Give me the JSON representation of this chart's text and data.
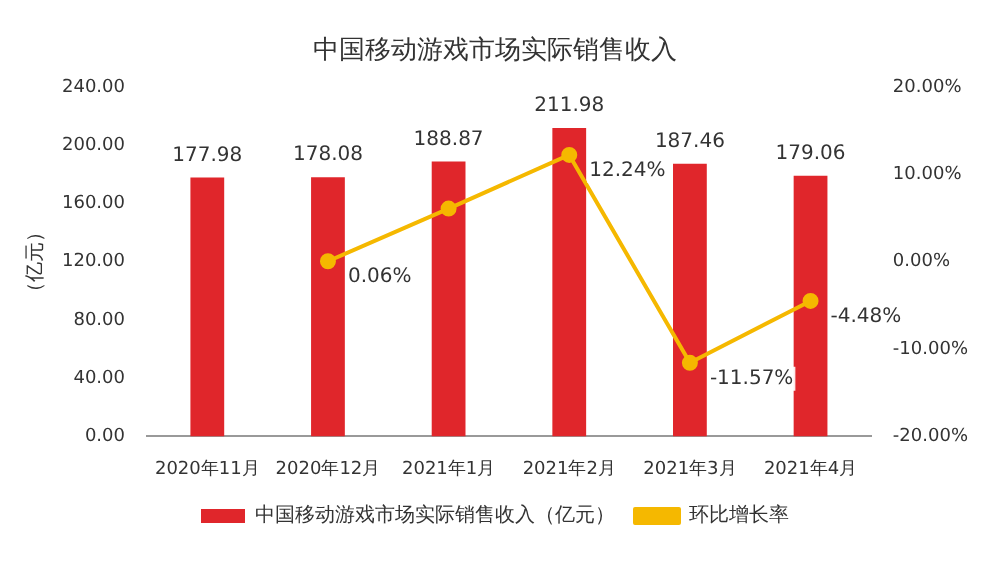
{
  "chart_data": {
    "type": "bar",
    "title": "中国移动游戏市场实际销售收入",
    "ylabel": "（亿元）",
    "categories": [
      "2020年11月",
      "2020年12月",
      "2021年1月",
      "2021年2月",
      "2021年3月",
      "2021年4月"
    ],
    "series": [
      {
        "name": "中国移动游戏市场实际销售收入（亿元）",
        "color": "#e0262b",
        "values": [
          177.98,
          178.08,
          188.87,
          211.98,
          187.46,
          179.06
        ],
        "value_labels": [
          "177.98",
          "178.08",
          "188.87",
          "211.98",
          "187.46",
          "179.06"
        ]
      },
      {
        "name": "环比增长率",
        "type": "line",
        "axis": "y2",
        "color": "#f5b800",
        "marker": "circle",
        "values": [
          null,
          0.06,
          6.1,
          12.24,
          -11.57,
          -4.48
        ],
        "value_labels": [
          null,
          "0.06%",
          null,
          "12.24%",
          "-11.57%",
          "-4.48%"
        ]
      }
    ],
    "ylim": [
      0,
      240
    ],
    "yticks": [
      {
        "value": 0,
        "label": "0.00"
      },
      {
        "value": 40,
        "label": "40.00"
      },
      {
        "value": 80,
        "label": "80.00"
      },
      {
        "value": 120,
        "label": "120.00"
      },
      {
        "value": 160,
        "label": "160.00"
      },
      {
        "value": 200,
        "label": "200.00"
      },
      {
        "value": 240,
        "label": "240.00"
      }
    ],
    "y2lim": [
      -20,
      20
    ],
    "y2ticks": [
      {
        "value": -20,
        "label": "-20.00%"
      },
      {
        "value": -10,
        "label": "-10.00%"
      },
      {
        "value": 0,
        "label": "0.00%"
      },
      {
        "value": 10,
        "label": "10.00%"
      },
      {
        "value": 20,
        "label": "20.00%"
      }
    ],
    "grid": false,
    "legend": "bottom"
  }
}
